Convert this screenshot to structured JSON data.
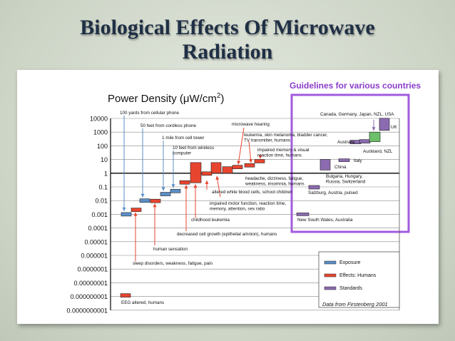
{
  "slide": {
    "title_line1": "Biological Effects Of Microwave",
    "title_line2": "Radiation"
  },
  "chart_data": {
    "type": "bar",
    "title": "",
    "ylabel": "Power Density (μW/cm2)",
    "ylabel_main": "Power Density (μW/cm",
    "ylabel_sup": "2",
    "ylabel_close": ")",
    "y_scale": "log",
    "ylim": [
      1e-09,
      10000
    ],
    "y_tick_labels": [
      "10000",
      "1000",
      "100",
      "10",
      "1",
      "0.1",
      "0.01",
      "0.001",
      "0.0001",
      "0.00001",
      "0.000001",
      "0.0000001",
      "0.00000001",
      "0.000000001",
      "0.0000000001"
    ],
    "highlight_title": "Guidelines for various countries",
    "source_note": "Data from Firstenberg 2001",
    "legend": [
      {
        "label": "Exposure",
        "color": "#5b8fc7"
      },
      {
        "label": "Effects: Humans",
        "color": "#e8452f"
      },
      {
        "label": "Standards",
        "color": "#8c6bb1"
      }
    ],
    "exposures": [
      {
        "label": "100 yards from cellular phone",
        "value": 0.001
      },
      {
        "label": "50 feet from cordless phone",
        "value": 0.01
      },
      {
        "label": "1 mile from cell tower",
        "value": 0.03
      },
      {
        "label": "10 feet from wireless computer",
        "value": 0.05
      }
    ],
    "effects": [
      {
        "label": "EEG altered, humans",
        "value": 1e-09
      },
      {
        "label": "sleep disorders, weakness, fatigue, pain",
        "value": 0.002
      },
      {
        "label": "human sensation",
        "value": 0.01
      },
      {
        "label": "decreased cell growth (epithelial amnion), humans",
        "value": 0.2
      },
      {
        "label": "childhood leukemia",
        "value": "0.2-6"
      },
      {
        "label": "altered white blood cells, school children",
        "value": "1-6"
      },
      {
        "label": "impaired motor function, reaction time, memory, attention, sex ratio",
        "value": 1
      },
      {
        "label": "headache, dizziness, fatigue, weakness, insomnia, humans",
        "value": 2
      },
      {
        "label": "microwave hearing",
        "value": 2
      },
      {
        "label": "leukemia, skin melanoma, bladder cancer, TV transmitter, humans",
        "value": 4
      },
      {
        "label": "impaired memory & visual reaction time, humans",
        "value": 8
      }
    ],
    "standards": [
      {
        "label": "New South Wales, Australia",
        "value": 0.001
      },
      {
        "label": "Salzburg, Austria, pulsed",
        "value": 0.1
      },
      {
        "label": "Bulgaria, Hungary, Russia, Switzerland",
        "value": 5
      },
      {
        "label": "China",
        "value": 10
      },
      {
        "label": "Italy",
        "value": 10
      },
      {
        "label": "Auckland, NZL",
        "value": 200
      },
      {
        "label": "Australia",
        "value": 200
      },
      {
        "label": "Canada, Germany, Japan, NZL, USA",
        "value": 1000
      },
      {
        "label": "UK",
        "value": 5000
      }
    ]
  }
}
